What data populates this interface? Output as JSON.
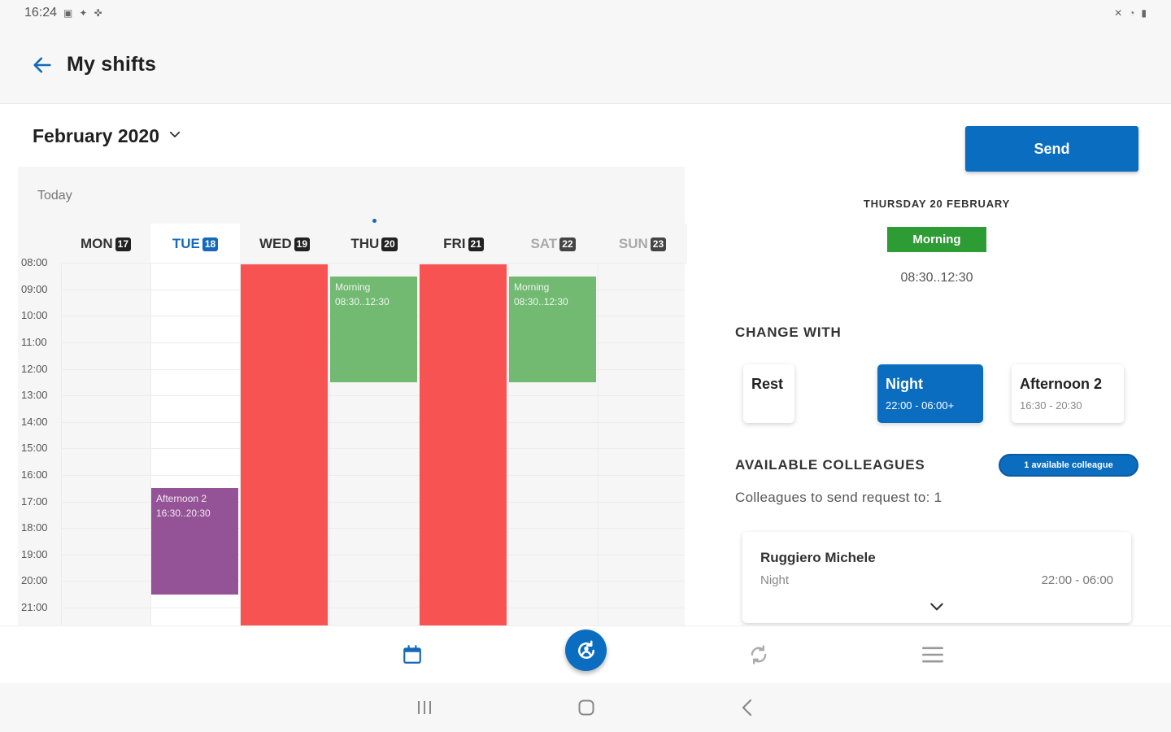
{
  "status_bar": {
    "time": "16:24",
    "left_icons": [
      "image-icon",
      "twitter-icon",
      "app-icon"
    ],
    "right_icons": [
      "mute-icon",
      "wifi-icon",
      "battery-icon"
    ]
  },
  "header": {
    "title": "My shifts"
  },
  "calendar": {
    "month": "February 2020",
    "today_label": "Today",
    "days": [
      {
        "name": "MON",
        "num": "17",
        "state": "normal"
      },
      {
        "name": "TUE",
        "num": "18",
        "state": "today"
      },
      {
        "name": "WED",
        "num": "19",
        "state": "normal"
      },
      {
        "name": "THU",
        "num": "20",
        "state": "selected"
      },
      {
        "name": "FRI",
        "num": "21",
        "state": "normal"
      },
      {
        "name": "SAT",
        "num": "22",
        "state": "weekend"
      },
      {
        "name": "SUN",
        "num": "23",
        "state": "weekend"
      }
    ],
    "time_labels": [
      "08:00",
      "09:00",
      "10:00",
      "11:00",
      "12:00",
      "13:00",
      "14:00",
      "15:00",
      "16:00",
      "17:00",
      "18:00",
      "19:00",
      "20:00",
      "21:00"
    ],
    "events": [
      {
        "day": 3,
        "title": "Morning",
        "time": "08:30..12:30",
        "color": "#72b972"
      },
      {
        "day": 5,
        "title": "Morning",
        "time": "08:30..12:30",
        "color": "#72b972"
      },
      {
        "day": 1,
        "title": "Afternoon 2",
        "time": "16:30..20:30",
        "color": "#955397"
      },
      {
        "day": 2,
        "title": "",
        "time": "",
        "color": "#f75353"
      },
      {
        "day": 4,
        "title": "",
        "time": "",
        "color": "#f75353"
      }
    ]
  },
  "panel": {
    "send_label": "Send",
    "selected_date": "THURSDAY 20 FEBRUARY",
    "selected_shift": "Morning",
    "selected_shift_color": "#2d9c34",
    "selected_time": "08:30..12:30",
    "change_with_title": "CHANGE WITH",
    "options": [
      {
        "name": "Rest",
        "time": "",
        "selected": false
      },
      {
        "name": "Night",
        "time": "22:00 - 06:00+",
        "selected": true
      },
      {
        "name": "Afternoon 2",
        "time": "16:30 - 20:30",
        "selected": false
      }
    ],
    "colleagues_title": "AVAILABLE COLLEAGUES",
    "available_badge": "1 available colleague",
    "colleagues_sub": "Colleagues to send request to: 1",
    "colleague": {
      "name": "Ruggiero Michele",
      "shift": "Night",
      "time": "22:00 - 06:00"
    }
  },
  "colors": {
    "accent": "#0a6dbf",
    "rest_red": "#f75353",
    "morning_green": "#72b972",
    "afternoon_purple": "#955397"
  },
  "bottom_nav": [
    "calendar-icon",
    "swap-request-icon",
    "refresh-icon",
    "menu-icon"
  ],
  "system_nav": [
    "recents-icon",
    "home-icon",
    "back-icon"
  ]
}
